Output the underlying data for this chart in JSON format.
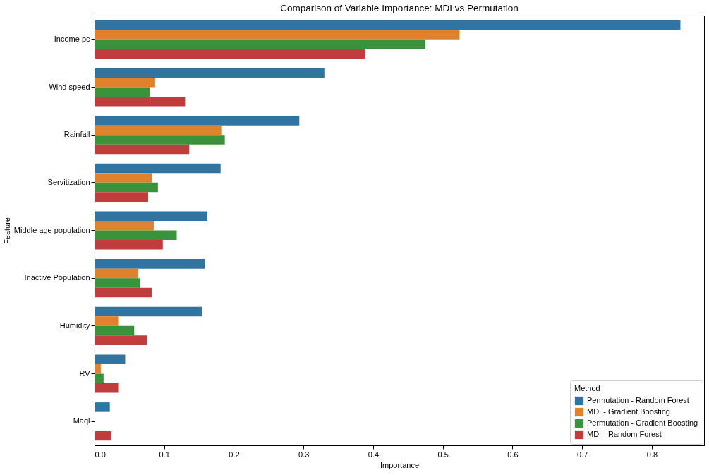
{
  "chart_data": {
    "type": "bar",
    "orientation": "horizontal",
    "title": "Comparison of Variable Importance: MDI vs Permutation",
    "xlabel": "Importance",
    "ylabel": "Feature",
    "legend_title": "Method",
    "legend": "bottom right",
    "grid": false,
    "categories": [
      "Income pc",
      "Wind speed",
      "Rainfall",
      "Servitization",
      "Middle age population",
      "Inactive Population",
      "Humidity",
      "RV",
      "Maqi"
    ],
    "xlim": [
      0,
      0.875
    ],
    "xticks": [
      {
        "value": 0,
        "label": "0.0"
      },
      0.1,
      0.2,
      0.3,
      0.4,
      0.5,
      0.6,
      0.7,
      0.8
    ],
    "series": [
      {
        "name": "Permutation - Random Forest",
        "color": "#3274a1",
        "values": [
          0.841,
          0.33,
          0.294,
          0.181,
          0.162,
          0.158,
          0.154,
          0.044,
          0.022
        ]
      },
      {
        "name": "MDI - Gradient Boosting",
        "color": "#e1812c",
        "values": [
          0.524,
          0.087,
          0.182,
          0.082,
          0.085,
          0.063,
          0.034,
          0.009,
          0
        ]
      },
      {
        "name": "Permutation - Gradient Boosting",
        "color": "#3a923a",
        "values": [
          0.475,
          0.079,
          0.187,
          0.091,
          0.118,
          0.065,
          0.057,
          0.013,
          0
        ]
      },
      {
        "name": "MDI - Random Forest",
        "color": "#c03d3e",
        "values": [
          0.388,
          0.13,
          0.136,
          0.077,
          0.098,
          0.082,
          0.075,
          0.034,
          0.024
        ]
      }
    ]
  }
}
